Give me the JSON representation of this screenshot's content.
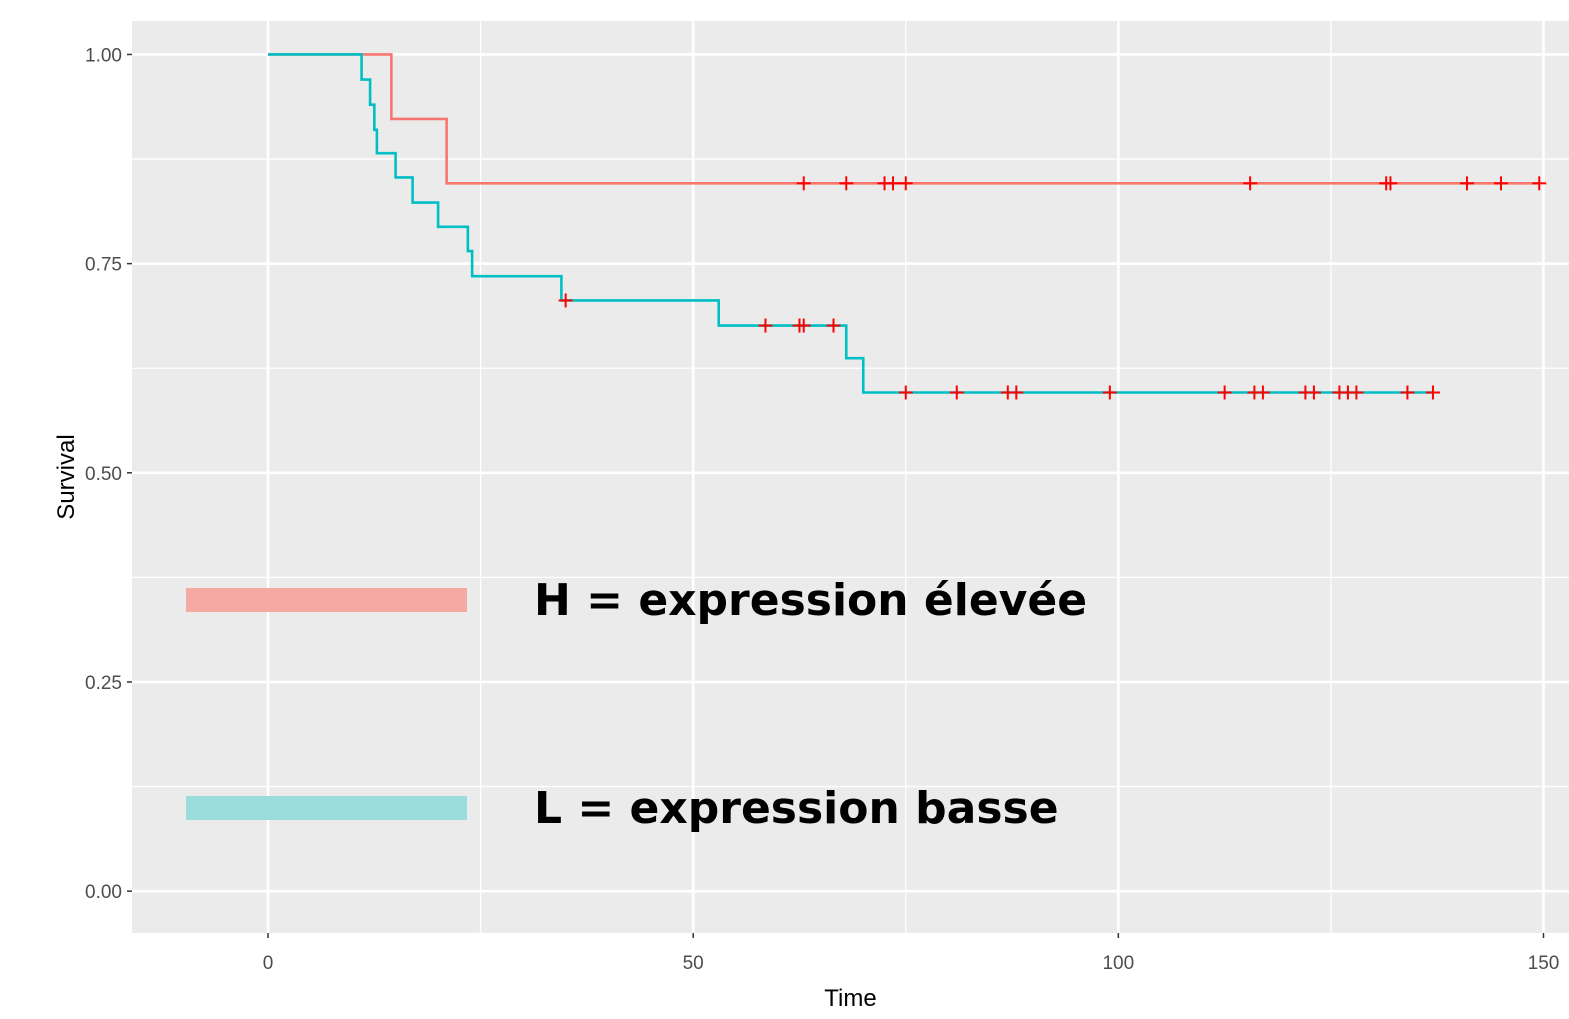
{
  "chart_data": {
    "type": "line",
    "title": "",
    "xlabel": "Time",
    "ylabel": "Survival",
    "xlim": [
      -16,
      153
    ],
    "ylim": [
      -0.05,
      1.04
    ],
    "x_ticks": [
      0,
      50,
      100,
      150
    ],
    "x_tick_labels": [
      "0",
      "50",
      "100",
      "150"
    ],
    "y_ticks": [
      0,
      0.25,
      0.5,
      0.75,
      1.0
    ],
    "y_tick_labels": [
      "0.00",
      "0.25",
      "0.50",
      "0.75",
      "1.00"
    ],
    "grid": true,
    "legend": [
      {
        "label": "H = expression élevée",
        "color": "#f4aaa3"
      },
      {
        "label": "L = expression basse",
        "color": "#9bdcdc"
      }
    ],
    "censor_color": "#ff0000",
    "series": [
      {
        "color": "#f8766d",
        "steps": [
          [
            0,
            1.0
          ],
          [
            14.5,
            0.923
          ],
          [
            21,
            0.846
          ],
          [
            149.5,
            0.846
          ]
        ],
        "censored": [
          [
            63,
            0.846
          ],
          [
            68,
            0.846
          ],
          [
            72.5,
            0.846
          ],
          [
            73.5,
            0.846
          ],
          [
            75,
            0.846
          ],
          [
            115.5,
            0.846
          ],
          [
            131.5,
            0.846
          ],
          [
            132,
            0.846
          ],
          [
            141,
            0.846
          ],
          [
            145,
            0.846
          ],
          [
            149.5,
            0.846
          ]
        ]
      },
      {
        "color": "#00bfc4",
        "steps": [
          [
            0,
            1.0
          ],
          [
            11,
            0.97
          ],
          [
            12,
            0.94
          ],
          [
            12.5,
            0.91
          ],
          [
            12.8,
            0.882
          ],
          [
            15,
            0.853
          ],
          [
            17,
            0.823
          ],
          [
            20,
            0.794
          ],
          [
            23.5,
            0.765
          ],
          [
            24,
            0.735
          ],
          [
            34.5,
            0.706
          ],
          [
            53,
            0.676
          ],
          [
            68,
            0.637
          ],
          [
            70,
            0.596
          ],
          [
            137,
            0.596
          ]
        ],
        "censored": [
          [
            35,
            0.706
          ],
          [
            58.5,
            0.676
          ],
          [
            62.5,
            0.676
          ],
          [
            63,
            0.676
          ],
          [
            66.5,
            0.676
          ],
          [
            75,
            0.596
          ],
          [
            81,
            0.596
          ],
          [
            87,
            0.596
          ],
          [
            88,
            0.596
          ],
          [
            99,
            0.596
          ],
          [
            112.5,
            0.596
          ],
          [
            116,
            0.596
          ],
          [
            117,
            0.596
          ],
          [
            122,
            0.596
          ],
          [
            123,
            0.596
          ],
          [
            126,
            0.596
          ],
          [
            127,
            0.596
          ],
          [
            128,
            0.596
          ],
          [
            134,
            0.596
          ],
          [
            137,
            0.596
          ]
        ]
      }
    ]
  }
}
